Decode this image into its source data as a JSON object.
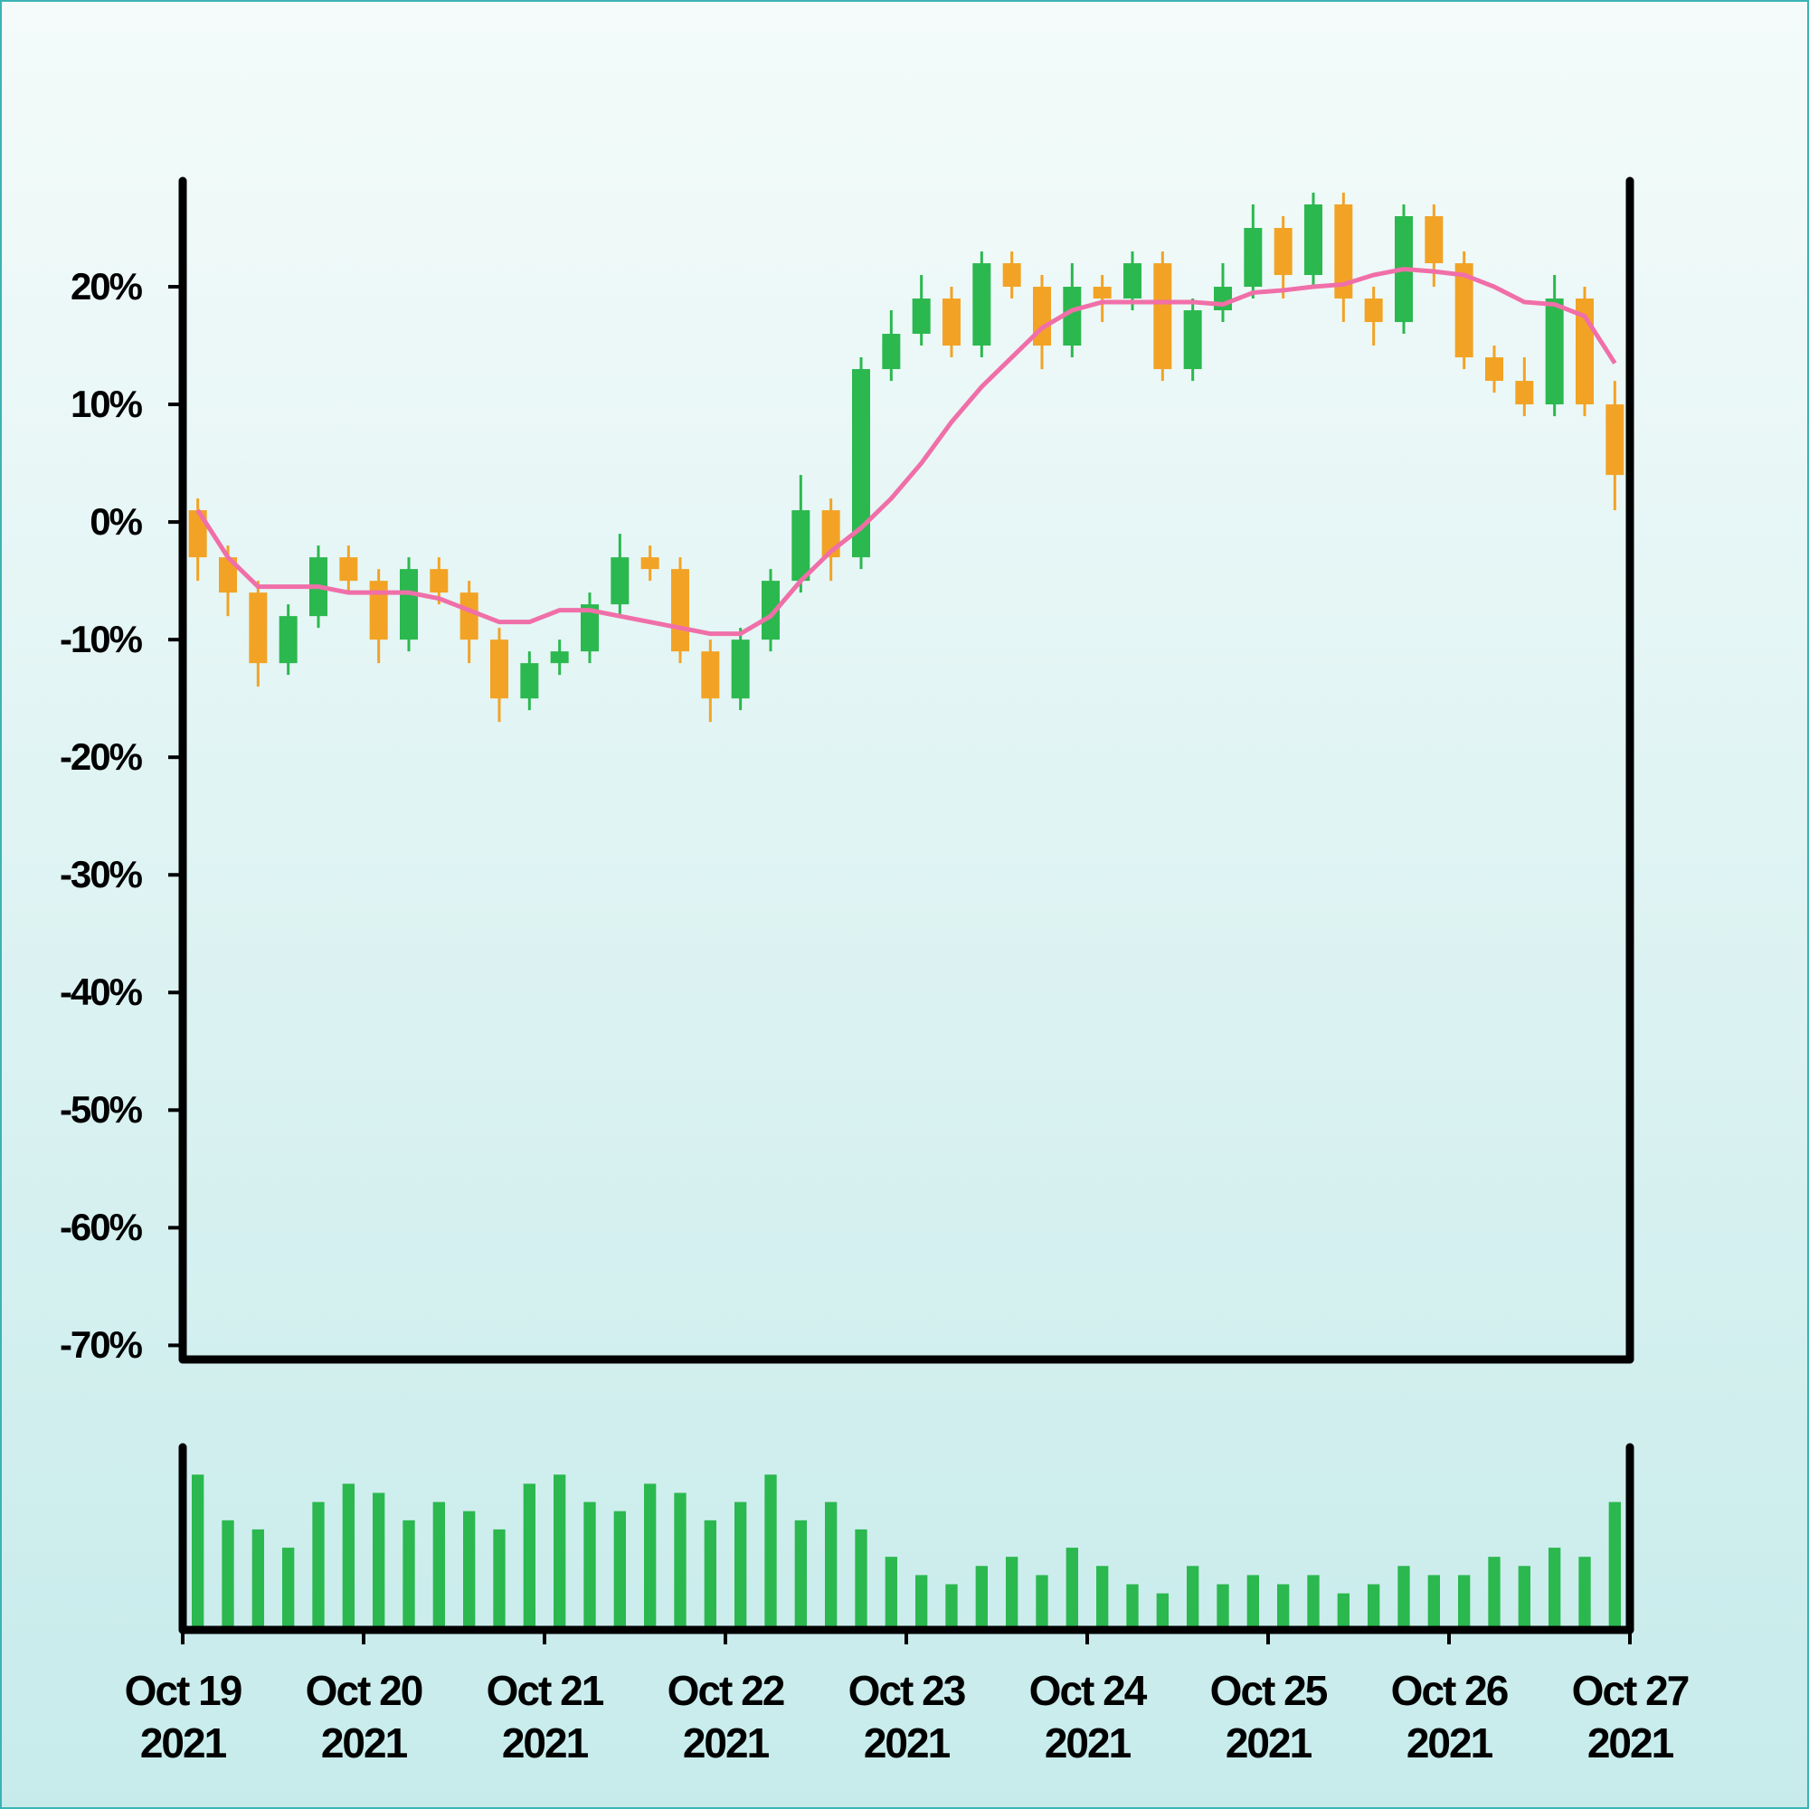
{
  "chart_data": {
    "type": "candlestick",
    "up_color": "#2bb84f",
    "down_color": "#f2a325",
    "open": [
      1,
      -3,
      -6,
      -12,
      -8,
      -3,
      -5,
      -10,
      -4,
      -6,
      -10,
      -15,
      -12,
      -11,
      -7,
      -3,
      -4,
      -11,
      -15,
      -10,
      -5,
      1,
      -3,
      13,
      16,
      19,
      15,
      22,
      20,
      15,
      20,
      19,
      22,
      13,
      18,
      20,
      25,
      21,
      27,
      19,
      17,
      26,
      22,
      14,
      12,
      10,
      19,
      10
    ],
    "high": [
      2,
      -2,
      -5,
      -7,
      -2,
      -2,
      -4,
      -3,
      -3,
      -5,
      -9,
      -11,
      -10,
      -6,
      -1,
      -2,
      -3,
      -10,
      -9,
      -4,
      4,
      2,
      14,
      18,
      21,
      20,
      23,
      23,
      21,
      22,
      21,
      23,
      23,
      19,
      22,
      27,
      26,
      28,
      28,
      20,
      27,
      27,
      23,
      15,
      14,
      21,
      20,
      12
    ],
    "low": [
      -5,
      -8,
      -14,
      -13,
      -9,
      -6,
      -12,
      -11,
      -7,
      -12,
      -17,
      -16,
      -13,
      -12,
      -8,
      -5,
      -12,
      -17,
      -16,
      -11,
      -6,
      -5,
      -4,
      12,
      15,
      14,
      14,
      19,
      13,
      14,
      17,
      18,
      12,
      12,
      17,
      19,
      19,
      20,
      17,
      15,
      16,
      20,
      13,
      11,
      9,
      9,
      9,
      1
    ],
    "close": [
      -3,
      -6,
      -12,
      -8,
      -3,
      -5,
      -10,
      -4,
      -6,
      -10,
      -15,
      -12,
      -11,
      -7,
      -3,
      -4,
      -11,
      -15,
      -10,
      -5,
      1,
      -3,
      13,
      16,
      19,
      15,
      22,
      20,
      15,
      20,
      19,
      22,
      13,
      18,
      20,
      25,
      21,
      27,
      19,
      17,
      26,
      22,
      14,
      12,
      10,
      19,
      10,
      4
    ],
    "moving_average": {
      "color": "#f06fa8",
      "values": [
        1,
        -3,
        -5.5,
        -5.5,
        -5.5,
        -6,
        -6,
        -6,
        -6.5,
        -7.5,
        -8.5,
        -8.5,
        -7.5,
        -7.5,
        -8,
        -8.5,
        -9,
        -9.5,
        -9.5,
        -8,
        -5,
        -2.5,
        -0.5,
        2,
        5,
        8.5,
        11.5,
        14,
        16.5,
        18,
        18.7,
        18.7,
        18.7,
        18.7,
        18.5,
        19.5,
        19.7,
        20,
        20.2,
        21,
        21.5,
        21.3,
        21,
        20,
        18.7,
        18.5,
        17.5,
        13.5
      ]
    },
    "volume": {
      "color": "#2bb84f",
      "ylim": [
        0,
        100
      ],
      "values": [
        85,
        60,
        55,
        45,
        70,
        80,
        75,
        60,
        70,
        65,
        55,
        80,
        85,
        70,
        65,
        80,
        75,
        60,
        70,
        85,
        60,
        70,
        55,
        40,
        30,
        25,
        35,
        40,
        30,
        45,
        35,
        25,
        20,
        35,
        25,
        30,
        25,
        30,
        20,
        25,
        35,
        30,
        30,
        40,
        35,
        45,
        40,
        70
      ]
    },
    "xlim": [
      0,
      48
    ],
    "xticks": [
      {
        "value": 0,
        "label": "Oct 19\n2021"
      },
      {
        "value": 6,
        "label": "Oct 20\n2021"
      },
      {
        "value": 12,
        "label": "Oct 21\n2021"
      },
      {
        "value": 18,
        "label": "Oct 22\n2021"
      },
      {
        "value": 24,
        "label": "Oct 23\n2021"
      },
      {
        "value": 30,
        "label": "Oct 24\n2021"
      },
      {
        "value": 36,
        "label": "Oct 25\n2021"
      },
      {
        "value": 42,
        "label": "Oct 26\n2021"
      },
      {
        "value": 48,
        "label": "Oct 27\n2021"
      }
    ],
    "ylim": [
      -71.2,
      29
    ],
    "yticks": [
      {
        "value": 20,
        "label": "20%"
      },
      {
        "value": 10,
        "label": "10%"
      },
      {
        "value": 0,
        "label": "0%"
      },
      {
        "value": -10,
        "label": "-10%"
      },
      {
        "value": -20,
        "label": "-20%"
      },
      {
        "value": -30,
        "label": "-30%"
      },
      {
        "value": -40,
        "label": "-40%"
      },
      {
        "value": -50,
        "label": "-50%"
      },
      {
        "value": -60,
        "label": "-60%"
      },
      {
        "value": -70,
        "label": "-70%"
      }
    ]
  }
}
